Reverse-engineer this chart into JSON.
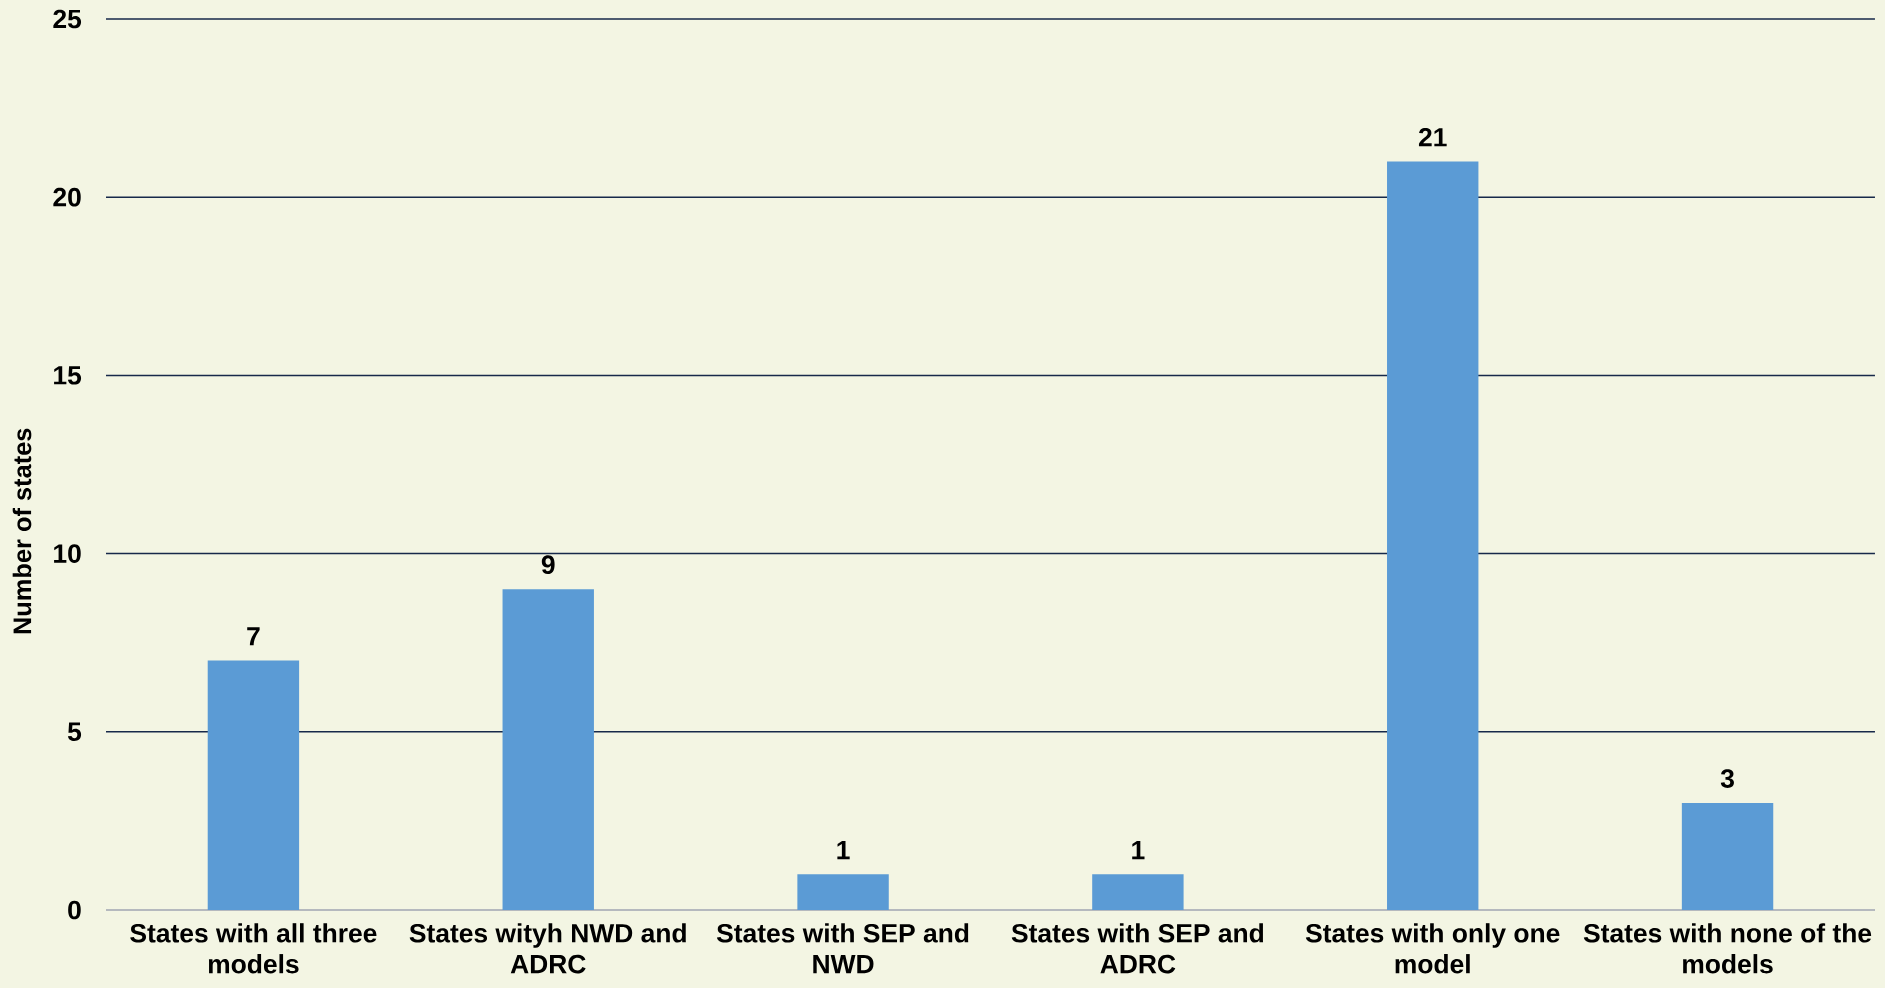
{
  "chart_data": {
    "type": "bar",
    "ylabel": "Number of states",
    "categories": [
      "States with all three models",
      "States wityh NWD and ADRC",
      "States with SEP and NWD",
      "States with SEP and ADRC",
      "States with only one model",
      "States with none of the models"
    ],
    "values": [
      7,
      9,
      1,
      1,
      21,
      3
    ],
    "color": "#5b9bd5",
    "ylim": [
      0,
      25
    ],
    "yticks": [
      0,
      5,
      10,
      15,
      20,
      25
    ],
    "grid": "y",
    "data_labels": true
  }
}
